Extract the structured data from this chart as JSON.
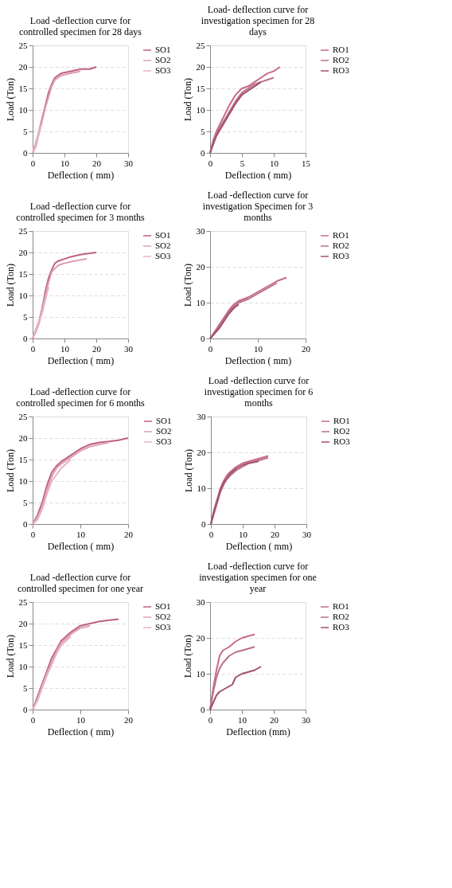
{
  "chart_data": [
    {
      "type": "line",
      "title": "Load -deflection curve for controlled specimen for 28 days",
      "xlabel": "Deflection ( mm)",
      "ylabel": "Load  (Ton)",
      "xlim": [
        0,
        30
      ],
      "ylim": [
        0,
        25
      ],
      "xticks": [
        0,
        10,
        20,
        30
      ],
      "yticks": [
        0,
        5,
        10,
        15,
        20,
        25
      ],
      "grid": "y",
      "legend": "right",
      "line_style": "solid",
      "series": [
        {
          "name": "SO1",
          "color": "#c0607f",
          "x": [
            0,
            1,
            2,
            3,
            4,
            5,
            6,
            7,
            9,
            12,
            15,
            18,
            20
          ],
          "values": [
            0,
            2,
            5,
            8,
            11,
            14,
            16,
            17.5,
            18.5,
            19,
            19.5,
            19.5,
            20
          ]
        },
        {
          "name": "SO2",
          "color": "#dca0b4",
          "x": [
            0,
            1,
            2,
            3,
            4,
            5,
            6,
            7,
            9,
            12,
            15
          ],
          "values": [
            0,
            1.5,
            4.5,
            7.5,
            10.5,
            13,
            15.5,
            17,
            18,
            18.5,
            19
          ]
        },
        {
          "name": "SO3",
          "color": "#e6b4c4",
          "x": [
            0,
            1,
            2,
            3
          ],
          "values": [
            0,
            2.5,
            5,
            7
          ]
        }
      ]
    },
    {
      "type": "line",
      "title": "Load- deflection curve for investigation specimen for 28 days",
      "xlabel": "Deflection ( mm)",
      "ylabel": "Load  (Ton)",
      "xlim": [
        0,
        15
      ],
      "ylim": [
        0,
        25
      ],
      "xticks": [
        0,
        5,
        10,
        15
      ],
      "yticks": [
        0,
        5,
        10,
        15,
        20,
        25
      ],
      "grid": "y",
      "legend": "right",
      "line_style": "solid",
      "series": [
        {
          "name": "RO1",
          "color": "#c86a8a",
          "x": [
            0,
            0.5,
            1,
            2,
            3,
            4,
            5,
            6,
            7,
            8,
            9,
            10,
            11
          ],
          "values": [
            0,
            3,
            5,
            8,
            11,
            13.5,
            15,
            15.5,
            16.5,
            17.5,
            18.5,
            19,
            20
          ]
        },
        {
          "name": "RO2",
          "color": "#b8708e",
          "x": [
            0,
            0.5,
            1,
            2,
            3,
            4,
            5,
            6,
            7,
            8,
            9,
            10
          ],
          "values": [
            0,
            2.5,
            4.5,
            7,
            9.5,
            12,
            14,
            15,
            16,
            16.5,
            17,
            17.5
          ]
        },
        {
          "name": "RO3",
          "color": "#a0506e",
          "x": [
            0,
            0.5,
            1,
            2,
            3,
            4,
            5,
            6,
            7,
            8
          ],
          "values": [
            0,
            2,
            4,
            6.5,
            9,
            11.5,
            13.5,
            14.5,
            15.5,
            16.5
          ]
        }
      ]
    },
    {
      "type": "line",
      "title": "Load -deflection curve for controlled specimen for 3 months",
      "xlabel": "Deflection ( mm)",
      "ylabel": "Load  (Ton)",
      "xlim": [
        0,
        30
      ],
      "ylim": [
        0,
        25
      ],
      "xticks": [
        0,
        10,
        20,
        30
      ],
      "yticks": [
        0,
        5,
        10,
        15,
        20,
        25
      ],
      "grid": "y",
      "legend": "right",
      "line_style": "solid",
      "series": [
        {
          "name": "SO1",
          "color": "#c0607f",
          "x": [
            0,
            1,
            2,
            3,
            4,
            5,
            6,
            7,
            8,
            10,
            12,
            15,
            18,
            20
          ],
          "values": [
            0,
            2,
            4,
            7,
            11,
            14,
            16,
            17.5,
            18,
            18.5,
            19,
            19.5,
            19.8,
            20
          ]
        },
        {
          "name": "SO2",
          "color": "#dca0b4",
          "x": [
            0,
            1,
            2,
            3,
            4,
            5,
            6,
            8,
            10,
            13,
            17
          ],
          "values": [
            0,
            1.5,
            3.5,
            6.5,
            10,
            13,
            15.5,
            17,
            17.5,
            18,
            18.5
          ]
        },
        {
          "name": "SO3",
          "color": "#e6b4c4",
          "x": [
            0,
            1,
            2,
            3,
            4,
            5
          ],
          "values": [
            0,
            2,
            4,
            6,
            9,
            12
          ]
        }
      ]
    },
    {
      "type": "line",
      "title": "Load -deflection curve for investigation Specimen for 3 months",
      "xlabel": "Deflection ( mm)",
      "ylabel": "Load  (Ton)",
      "xlim": [
        0,
        20
      ],
      "ylim": [
        0,
        30
      ],
      "xticks": [
        0,
        10,
        20
      ],
      "yticks": [
        0,
        10,
        20,
        30
      ],
      "grid": "y",
      "legend": "right",
      "line_style": "solid",
      "series": [
        {
          "name": "RO1",
          "color": "#c86a8a",
          "x": [
            0,
            1,
            2,
            3,
            4,
            5,
            6,
            8,
            10,
            12,
            14,
            16
          ],
          "values": [
            0,
            2,
            4,
            6,
            8,
            9.5,
            10.5,
            11.5,
            13,
            14.5,
            16,
            17
          ]
        },
        {
          "name": "RO2",
          "color": "#b8708e",
          "x": [
            0,
            1,
            2,
            3,
            4,
            5,
            6,
            8,
            10,
            12,
            14
          ],
          "values": [
            0,
            1.5,
            3.5,
            5.5,
            7.5,
            9,
            10,
            11,
            12.5,
            14,
            15.5
          ]
        },
        {
          "name": "RO3",
          "color": "#a0506e",
          "x": [
            0,
            1,
            2,
            3,
            4,
            5,
            6
          ],
          "values": [
            0,
            1.5,
            3,
            5,
            7,
            8.5,
            9.5
          ]
        }
      ]
    },
    {
      "type": "line",
      "title": "Load -deflection curve for controlled specimen for 6 months",
      "xlabel": "Deflection ( mm)",
      "ylabel": "Load  (Ton)",
      "xlim": [
        0,
        20
      ],
      "ylim": [
        0,
        25
      ],
      "xticks": [
        0,
        10,
        20
      ],
      "yticks": [
        0,
        5,
        10,
        15,
        20,
        25
      ],
      "grid": "y",
      "legend": "right",
      "line_style": "solid",
      "series": [
        {
          "name": "SO1",
          "color": "#c0607f",
          "x": [
            0,
            1,
            2,
            3,
            4,
            5,
            6,
            8,
            10,
            12,
            14,
            16,
            18,
            20
          ],
          "values": [
            0,
            2,
            5,
            9,
            12,
            13.5,
            14.5,
            16,
            17.5,
            18.5,
            19,
            19.2,
            19.5,
            20
          ]
        },
        {
          "name": "SO2",
          "color": "#dca0b4",
          "x": [
            0,
            1,
            2,
            3,
            4,
            5,
            6,
            8,
            10,
            12,
            14,
            16
          ],
          "values": [
            0,
            1.5,
            4,
            8,
            11,
            13,
            14,
            15.5,
            17,
            18,
            18.5,
            19
          ]
        },
        {
          "name": "SO3",
          "color": "#e6b4c4",
          "x": [
            0,
            1,
            2,
            3,
            4,
            6,
            8
          ],
          "values": [
            0,
            1,
            3.5,
            7,
            10,
            13,
            15
          ]
        }
      ]
    },
    {
      "type": "line",
      "title": "Load -deflection curve for investigation specimen for 6 months",
      "xlabel": "Deflection ( mm)",
      "ylabel": "Load  (Ton)",
      "xlim": [
        0,
        30
      ],
      "ylim": [
        0,
        30
      ],
      "xticks": [
        0,
        10,
        20,
        30
      ],
      "yticks": [
        0,
        10,
        20,
        30
      ],
      "grid": "y",
      "legend": "right",
      "line_style": "solid",
      "series": [
        {
          "name": "RO1",
          "color": "#c86a8a",
          "x": [
            0,
            1,
            2,
            3,
            4,
            5,
            6,
            8,
            10,
            12,
            14,
            16,
            18
          ],
          "values": [
            0,
            4,
            7,
            10,
            12,
            13.5,
            14.5,
            16,
            17,
            17.5,
            18,
            18.5,
            19
          ]
        },
        {
          "name": "RO2",
          "color": "#b8708e",
          "x": [
            0,
            1,
            2,
            3,
            4,
            5,
            6,
            8,
            10,
            12,
            14,
            16,
            18
          ],
          "values": [
            0,
            3,
            6,
            9,
            11,
            12.5,
            13.5,
            15,
            16,
            17,
            17.5,
            18,
            18.5
          ]
        },
        {
          "name": "RO3",
          "color": "#a0506e",
          "x": [
            0,
            1,
            2,
            3,
            4,
            6,
            8,
            10,
            12,
            15
          ],
          "values": [
            0,
            3.5,
            6.5,
            9.5,
            11.5,
            14,
            15.5,
            16.5,
            17,
            17.5
          ]
        }
      ]
    },
    {
      "type": "line",
      "title": "Load -deflection curve for controlled specimen for one year",
      "xlabel": "Deflection ( mm)",
      "ylabel": "Load  (Ton)",
      "xlim": [
        0,
        20
      ],
      "ylim": [
        0,
        25
      ],
      "xticks": [
        0,
        10,
        20
      ],
      "yticks": [
        0,
        5,
        10,
        15,
        20,
        25
      ],
      "grid": "y",
      "legend": "right",
      "line_style": "solid",
      "series": [
        {
          "name": "SO1",
          "color": "#c0607f",
          "x": [
            0,
            1,
            2,
            3,
            4,
            5,
            6,
            7,
            8,
            10,
            12,
            14,
            16,
            18
          ],
          "values": [
            0,
            3,
            6,
            9,
            12,
            14,
            16,
            17,
            18,
            19.5,
            20,
            20.5,
            20.8,
            21
          ]
        },
        {
          "name": "SO2",
          "color": "#dca0b4",
          "x": [
            0,
            1,
            2,
            3,
            4,
            5,
            6,
            7,
            8,
            10,
            12
          ],
          "values": [
            0,
            2.5,
            5.5,
            8.5,
            11,
            13.5,
            15.5,
            16.5,
            17.5,
            19,
            19.5
          ]
        },
        {
          "name": "SO3",
          "color": "#e6b4c4",
          "x": [
            0,
            1,
            2,
            3,
            4,
            5,
            6,
            8
          ],
          "values": [
            0,
            2,
            5,
            8,
            10.5,
            13,
            15,
            17
          ]
        }
      ]
    },
    {
      "type": "line",
      "title": "Load -deflection curve for investigation specimen for one year",
      "xlabel": "Deflection (mm)",
      "ylabel": "Load  (Ton)",
      "xlim": [
        0,
        30
      ],
      "ylim": [
        0,
        30
      ],
      "xticks": [
        0,
        10,
        20,
        30
      ],
      "yticks": [
        0,
        10,
        20,
        30
      ],
      "grid": "y",
      "legend": "right",
      "line_style": "solid",
      "series": [
        {
          "name": "RO1",
          "color": "#c86a8a",
          "x": [
            0,
            1,
            2,
            3,
            4,
            5,
            6,
            8,
            10,
            12,
            14
          ],
          "values": [
            0,
            6,
            11,
            15,
            16.5,
            17,
            17.5,
            19,
            20,
            20.5,
            21
          ]
        },
        {
          "name": "RO2",
          "color": "#b8708e",
          "x": [
            0,
            1,
            2,
            3,
            4,
            5,
            6,
            8,
            10,
            12,
            14
          ],
          "values": [
            0,
            5,
            9,
            11.5,
            13,
            14,
            15,
            16,
            16.5,
            17,
            17.5
          ]
        },
        {
          "name": "RO3",
          "color": "#a0506e",
          "x": [
            0,
            1,
            2,
            3,
            4,
            5,
            6,
            7,
            8,
            10,
            12,
            14,
            16
          ],
          "values": [
            0,
            2,
            4,
            5,
            5.5,
            6,
            6.5,
            7,
            9,
            10,
            10.5,
            11,
            12
          ]
        }
      ]
    }
  ]
}
